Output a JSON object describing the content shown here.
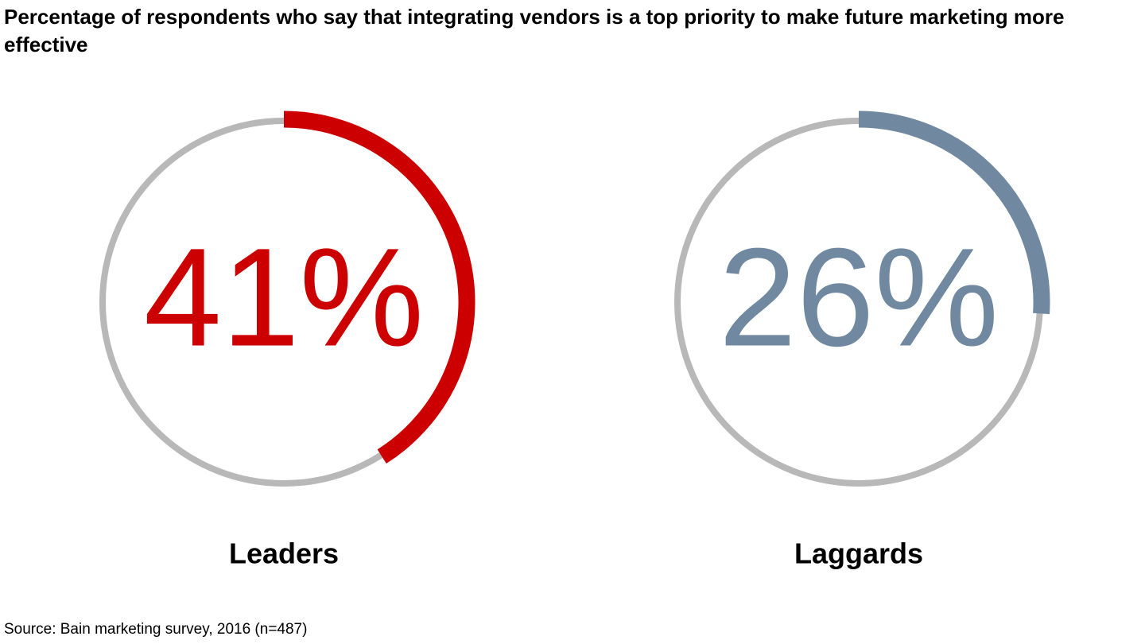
{
  "chart_data": {
    "type": "ring",
    "title": "Percentage of respondents who say that integrating vendors is a top priority to make future marketing more effective",
    "source": "Source: Bain marketing survey, 2016  (n=487)",
    "categories": [
      "Leaders",
      "Laggards"
    ],
    "values": [
      41,
      26
    ],
    "value_labels": [
      "41%",
      "26%"
    ],
    "colors": [
      "#cc0000",
      "#7189a0"
    ],
    "track_color": "#b8b8b8",
    "ylim": [
      0,
      100
    ]
  }
}
